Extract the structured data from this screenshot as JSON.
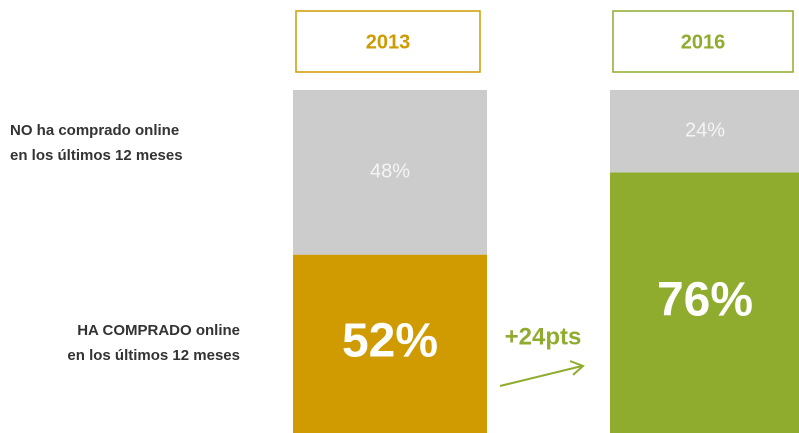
{
  "chart_data": {
    "type": "stacked-bar",
    "categories": [
      "2013",
      "2016"
    ],
    "category_colors": [
      "#cf9b00",
      "#8fac2e"
    ],
    "series": [
      {
        "name": "HA COMPRADO online\nen los últimos 12 meses",
        "colors": [
          "#cf9b00",
          "#8fac2e"
        ],
        "values": [
          52,
          76
        ],
        "value_labels": [
          "52%",
          "76%"
        ]
      },
      {
        "name": "NO ha comprado online\nen los  últimos 12 meses",
        "color": "#cccccc",
        "values": [
          48,
          24
        ],
        "value_labels": [
          "48%",
          "24%"
        ]
      }
    ],
    "ylim": [
      0,
      100
    ],
    "annotation": "+24pts"
  }
}
